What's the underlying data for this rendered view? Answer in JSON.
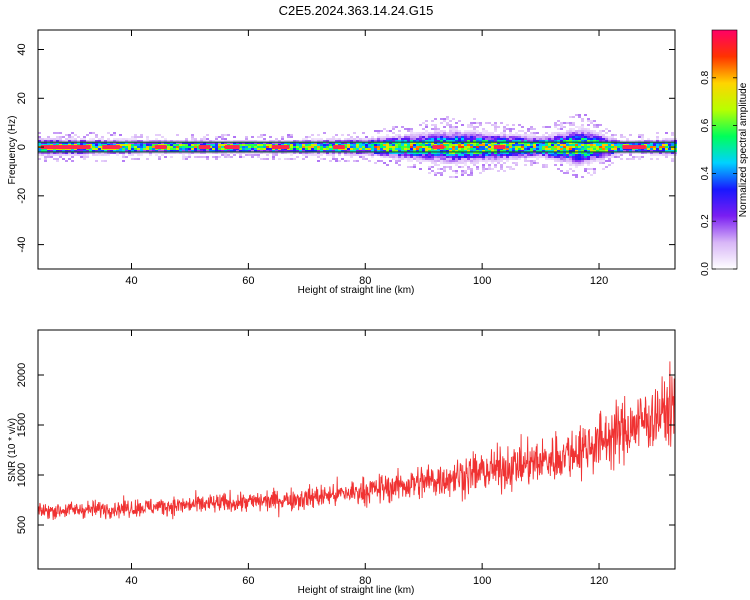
{
  "figure": {
    "title": "C2E5.2024.363.14.24.G15"
  },
  "chart_data": [
    {
      "type": "heatmap",
      "xlabel": "Height of straight line (km)",
      "ylabel": "Frequency (Hz)",
      "xlim": [
        24,
        133
      ],
      "ylim": [
        -50,
        48
      ],
      "xticks": [
        40,
        60,
        80,
        100,
        120
      ],
      "yticks": [
        -40,
        -20,
        0,
        20,
        40
      ],
      "grid": false,
      "colorbar": {
        "label": "Normalized spectral amplitude",
        "range": [
          0,
          1
        ],
        "ticks": [
          "0.0",
          "0.2",
          "0.4",
          "0.6",
          "0.8"
        ],
        "colors": [
          "#ffffff",
          "#d8b6f7",
          "#7a1ef2",
          "#1818ff",
          "#00d2ff",
          "#00ff5a",
          "#b8ff00",
          "#ffd400",
          "#ff3300",
          "#ff0066"
        ]
      },
      "center_frequency_hz": 0,
      "trace_lines_hz": [
        2,
        -2
      ],
      "band_halfwidth_hz": {
        "points_km": [
          24,
          60,
          80,
          95,
          110,
          117,
          124,
          133
        ],
        "values_hz": [
          4,
          3,
          4,
          8,
          5,
          9,
          3,
          4
        ]
      },
      "peak_segments_km": [
        [
          24.5,
          33
        ],
        [
          35,
          38
        ],
        [
          44,
          46
        ],
        [
          51.5,
          53.5
        ],
        [
          56,
          58.5
        ],
        [
          64,
          67
        ],
        [
          74.5,
          76.5
        ],
        [
          91.5,
          93.5
        ],
        [
          102,
          104
        ],
        [
          124,
          128
        ]
      ]
    },
    {
      "type": "line",
      "xlabel": "Height of straight line (km)",
      "ylabel": "SNR (10 * v/v)",
      "xlim": [
        24,
        133
      ],
      "ylim": [
        60,
        2450
      ],
      "xticks": [
        40,
        60,
        80,
        100,
        120
      ],
      "yticks": [
        500,
        1000,
        1500,
        2000
      ],
      "grid": false,
      "series": [
        {
          "color": "#f03232",
          "mean_curve": {
            "x": [
              24,
              40,
              60,
              70,
              80,
              90,
              100,
              110,
              115,
              120,
              125,
              130,
              133
            ],
            "y": [
              640,
              670,
              730,
              770,
              840,
              930,
              1030,
              1130,
              1220,
              1330,
              1470,
              1600,
              1680
            ]
          },
          "noise_halfwidth": {
            "x": [
              24,
              60,
              80,
              95,
              110,
              120,
              133
            ],
            "y": [
              100,
              130,
              170,
              250,
              290,
              370,
              450
            ]
          },
          "samples_per_km": 15
        }
      ]
    }
  ]
}
